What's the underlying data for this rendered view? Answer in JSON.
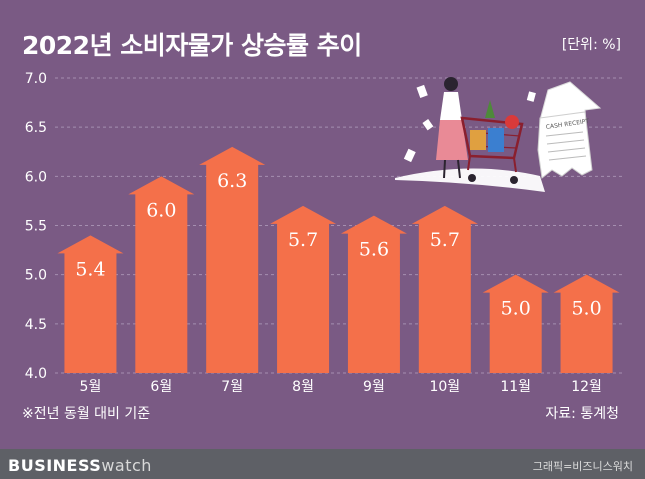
{
  "header": {
    "title": "2022년 소비자물가 상승률 추이",
    "unit": "[단위: %]"
  },
  "notes": {
    "basis": "※전년 동월 대비 기준",
    "source": "자료: 통계청"
  },
  "illustration": {
    "receipt_text": "CASH RECEIPT"
  },
  "footer": {
    "brand_bold": "BUSINESS",
    "brand_light": "watch",
    "credit": "그래픽=비즈니스워치"
  },
  "colors": {
    "background": "#7a5a84",
    "bar": "#f4704a",
    "grid": "#a58fb0",
    "footer": "#5e6066"
  },
  "chart_data": {
    "type": "bar",
    "title": "2022년 소비자물가 상승률 추이",
    "unit": "%",
    "categories": [
      "5월",
      "6월",
      "7월",
      "8월",
      "9월",
      "10월",
      "11월",
      "12월"
    ],
    "values": [
      5.4,
      6.0,
      6.3,
      5.7,
      5.6,
      5.7,
      5.0,
      5.0
    ],
    "value_labels": [
      "5.4",
      "6.0",
      "6.3",
      "5.7",
      "5.6",
      "5.7",
      "5.0",
      "5.0"
    ],
    "yticks": [
      "4.0",
      "4.5",
      "5.0",
      "5.5",
      "6.0",
      "6.5",
      "7.0"
    ],
    "ylim": [
      4.0,
      7.0
    ],
    "grid": true,
    "bar_shape": "arrow-up"
  }
}
